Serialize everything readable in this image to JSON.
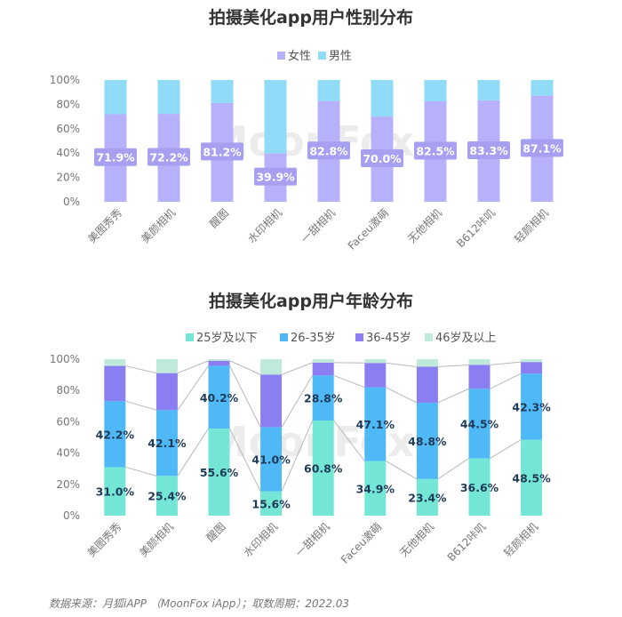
{
  "chart_data": [
    {
      "type": "bar",
      "stacked": true,
      "title": "拍摄美化app用户性别分布",
      "categories": [
        "美图秀秀",
        "美颜相机",
        "醒图",
        "水印相机",
        "一甜相机",
        "Faceu激萌",
        "无他相机",
        "B612咔叽",
        "轻颜相机"
      ],
      "series": [
        {
          "name": "女性",
          "color": "#b7b0fa",
          "values": [
            71.9,
            72.2,
            81.2,
            39.9,
            82.8,
            70.0,
            82.5,
            83.3,
            87.1
          ],
          "labels": [
            "71.9%",
            "72.2%",
            "81.2%",
            "39.9%",
            "82.8%",
            "70.0%",
            "82.5%",
            "83.3%",
            "87.1%"
          ]
        },
        {
          "name": "男性",
          "color": "#90dcf8",
          "values": [
            28.1,
            27.8,
            18.8,
            60.1,
            17.2,
            30.0,
            17.5,
            16.7,
            12.9
          ]
        }
      ],
      "yticks": [
        "0%",
        "20%",
        "40%",
        "60%",
        "80%",
        "100%"
      ],
      "ylim": [
        0,
        100
      ],
      "legend_position": "top"
    },
    {
      "type": "bar",
      "stacked": true,
      "title": "拍摄美化app用户年龄分布",
      "categories": [
        "美图秀秀",
        "美颜相机",
        "醒图",
        "水印相机",
        "一甜相机",
        "Faceu激萌",
        "无他相机",
        "B612咔叽",
        "轻颜相机"
      ],
      "series": [
        {
          "name": "25岁及以下",
          "color": "#73e6d6",
          "values": [
            31.0,
            25.4,
            55.6,
            15.6,
            60.8,
            34.9,
            23.4,
            36.6,
            48.5
          ],
          "labels": [
            "31.0%",
            "25.4%",
            "55.6%",
            "15.6%",
            "60.8%",
            "34.9%",
            "23.4%",
            "36.6%",
            "48.5%"
          ]
        },
        {
          "name": "26-35岁",
          "color": "#4fb9f7",
          "values": [
            42.2,
            42.1,
            40.2,
            41.0,
            28.8,
            47.1,
            48.8,
            44.5,
            42.3
          ],
          "labels": [
            "42.2%",
            "42.1%",
            "40.2%",
            "41.0%",
            "28.8%",
            "47.1%",
            "48.8%",
            "44.5%",
            "42.3%"
          ]
        },
        {
          "name": "36-45岁",
          "color": "#8a7ef2",
          "values": [
            22.5,
            23.6,
            3.2,
            33.6,
            8.2,
            15.6,
            23.0,
            15.2,
            7.4
          ]
        },
        {
          "name": "46岁及以上",
          "color": "#bfe9da",
          "values": [
            4.3,
            8.9,
            1.0,
            9.8,
            2.2,
            2.4,
            4.8,
            3.7,
            1.8
          ]
        }
      ],
      "yticks": [
        "0%",
        "20%",
        "40%",
        "60%",
        "80%",
        "100%"
      ],
      "ylim": [
        0,
        100
      ],
      "legend_position": "top"
    }
  ],
  "watermark": "MoonFox",
  "source": "数据来源：月狐iAPP （MoonFox iApp）；取数周期：2022.03"
}
